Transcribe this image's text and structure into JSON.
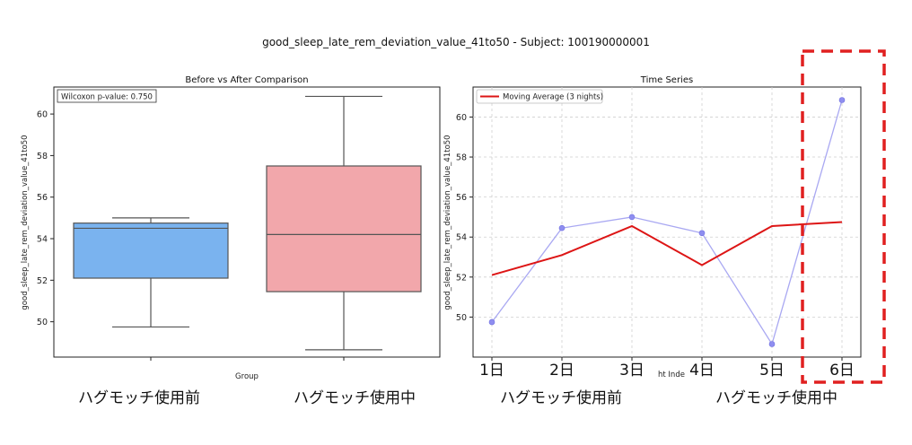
{
  "title": "good_sleep_late_rem_deviation_value_41to50 - Subject: 100190000001",
  "chart_data": [
    {
      "type": "box",
      "title": "Before vs After Comparison",
      "xlabel": "Group",
      "ylabel": "good_sleep_late_rem_deviation_value_41to50",
      "ylim": [
        48.3,
        61.3
      ],
      "yticks": [
        50,
        52,
        54,
        56,
        58,
        60
      ],
      "annotation": "Wilcoxon p-value: 0.750",
      "groups": [
        {
          "label": "ハグモッチ使用前",
          "color": "#7ab3ef",
          "min": 49.75,
          "q1": 52.1,
          "median": 54.5,
          "q3": 54.75,
          "max": 55.0
        },
        {
          "label": "ハグモッチ使用中",
          "color": "#f2a7ab",
          "min": 48.65,
          "q1": 51.45,
          "median": 54.2,
          "q3": 57.5,
          "max": 60.85
        }
      ]
    },
    {
      "type": "line",
      "title": "Time Series",
      "ylabel": "good_sleep_late_rem_deviation_value_41to50",
      "xlabel_partial": "ht Inde",
      "ylim": [
        48.0,
        61.5
      ],
      "yticks": [
        50,
        52,
        54,
        56,
        58,
        60
      ],
      "categories": [
        "1日",
        "2日",
        "3日",
        "4日",
        "5日",
        "6日"
      ],
      "grid": true,
      "legend_position": "top-left",
      "series": [
        {
          "style": "points",
          "color": "#8f8ef0",
          "values": [
            49.75,
            54.45,
            55.0,
            54.2,
            48.65,
            60.85
          ]
        },
        {
          "name": "Moving Average (3 nights)",
          "color": "#dd1515",
          "values": [
            52.1,
            53.1,
            54.55,
            52.6,
            54.55,
            54.75
          ]
        }
      ],
      "group_labels": [
        "ハグモッチ使用前",
        "ハグモッチ使用中"
      ],
      "highlight_color": "#e02020"
    }
  ]
}
